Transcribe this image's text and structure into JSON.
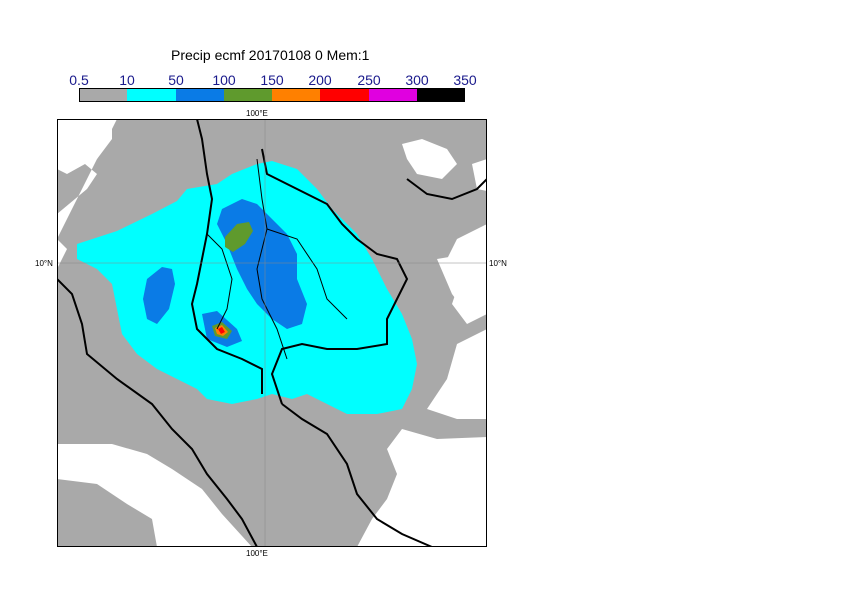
{
  "title": "Precip ecmf 20170108 0 Mem:1",
  "legend": {
    "tick_labels": [
      "0.5",
      "10",
      "50",
      "100",
      "150",
      "200",
      "250",
      "300",
      "350"
    ],
    "bins": [
      {
        "color": "#a9a9a9"
      },
      {
        "color": "#00ffff"
      },
      {
        "color": "#0a7be6"
      },
      {
        "color": "#5f9a2d"
      },
      {
        "color": "#ff8000"
      },
      {
        "color": "#ff0000"
      },
      {
        "color": "#e000e0"
      },
      {
        "color": "#000000"
      }
    ]
  },
  "map": {
    "lon_label": "100°E",
    "lat_label": "10°N",
    "colors": {
      "land_bg": "#ffffff",
      "gray": "#a9a9a9",
      "cyan": "#00ffff",
      "blue": "#0a7be6",
      "green": "#5f9a2d",
      "orange": "#ff8000",
      "red": "#ff0000",
      "coast": "#000000"
    }
  }
}
